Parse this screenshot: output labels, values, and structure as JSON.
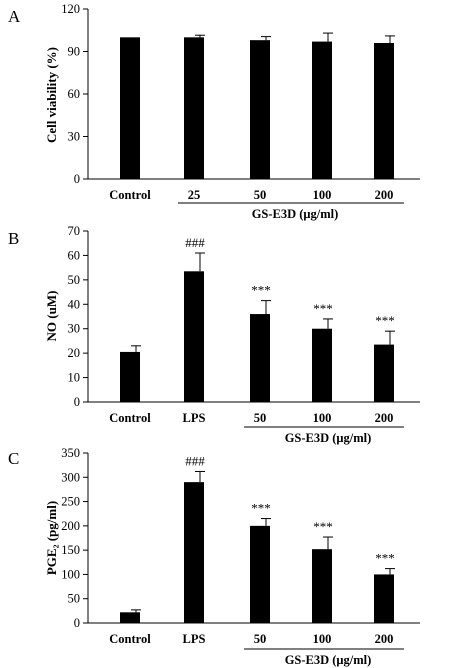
{
  "chart_data": [
    {
      "panel": "A",
      "type": "bar",
      "ylabel": "Cell viability (%)",
      "ylim": [
        0,
        120
      ],
      "yticks": [
        0,
        30,
        60,
        90,
        120
      ],
      "categories": [
        "Control",
        "25",
        "50",
        "100",
        "200"
      ],
      "values": [
        100,
        100,
        98,
        97,
        96
      ],
      "errors": [
        0,
        1.5,
        2.5,
        6,
        5
      ],
      "annotations": [
        "",
        "",
        "",
        "",
        ""
      ],
      "group_label": "GS-E3D (μg/ml)",
      "group_from": 1,
      "group_to": 4
    },
    {
      "panel": "B",
      "type": "bar",
      "ylabel": "NO (uM)",
      "ylim": [
        0,
        70
      ],
      "yticks": [
        0,
        10,
        20,
        30,
        40,
        50,
        60,
        70
      ],
      "categories": [
        "Control",
        "LPS",
        "50",
        "100",
        "200"
      ],
      "values": [
        20.5,
        53.5,
        36,
        30,
        23.5
      ],
      "errors": [
        2.5,
        7.5,
        5.5,
        4,
        5.5
      ],
      "annotations": [
        "",
        "###",
        "***",
        "***",
        "***"
      ],
      "group_label": "GS-E3D (μg/ml)",
      "group_from": 2,
      "group_to": 4
    },
    {
      "panel": "C",
      "type": "bar",
      "ylabel": "PGE₂ (pg/ml)",
      "ylim": [
        0,
        350
      ],
      "yticks": [
        0,
        50,
        100,
        150,
        200,
        250,
        300,
        350
      ],
      "categories": [
        "Control",
        "LPS",
        "50",
        "100",
        "200"
      ],
      "values": [
        22,
        290,
        200,
        152,
        100
      ],
      "errors": [
        5,
        22,
        15,
        25,
        12
      ],
      "annotations": [
        "",
        "###",
        "***",
        "***",
        "***"
      ],
      "group_label": "GS-E3D (μg/ml)",
      "group_from": 2,
      "group_to": 4
    }
  ]
}
